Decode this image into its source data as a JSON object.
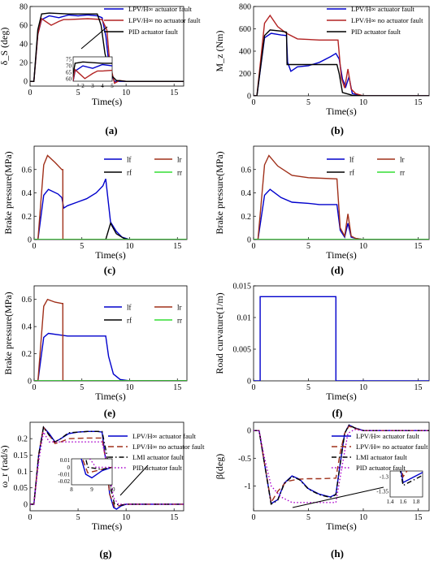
{
  "chart_data": [
    {
      "type": "line",
      "panel_label": "(a)",
      "ylabel": "δ_S (deg)",
      "xlabel": "Time(s)",
      "xlim": [
        0,
        16
      ],
      "ylim": [
        -5,
        80
      ],
      "xticks": [
        0,
        5,
        10,
        15
      ],
      "yticks": [
        0,
        20,
        40,
        60,
        80
      ],
      "grid": false,
      "legend": "top-right",
      "series": [
        {
          "name": "LPV/H∞ actuator fault",
          "color": "#0000cc",
          "x": [
            0,
            0.4,
            0.8,
            1.2,
            2,
            3,
            4,
            5,
            6,
            7,
            7.5,
            7.9,
            8.3,
            8.8,
            10,
            16
          ],
          "y": [
            0,
            0,
            50,
            66,
            70,
            68,
            71,
            70,
            71,
            70,
            68,
            48,
            10,
            0,
            0,
            0
          ]
        },
        {
          "name": "LPV/H∞ no actuator fault",
          "color": "#b22222",
          "x": [
            0,
            0.4,
            0.8,
            1.2,
            2.2,
            3,
            3.5,
            4,
            6,
            7.5,
            8.0,
            8.3,
            8.8,
            9.3,
            10,
            16
          ],
          "y": [
            0,
            0,
            50,
            67,
            60,
            64,
            66,
            66,
            67,
            66,
            55,
            20,
            -2,
            1,
            0,
            0
          ]
        },
        {
          "name": "PID actuator fault",
          "color": "#000000",
          "x": [
            0,
            0.4,
            0.8,
            1.2,
            2,
            4,
            6,
            7,
            7.4,
            7.8,
            8.3,
            9,
            10,
            16
          ],
          "y": [
            0,
            0,
            55,
            72,
            73,
            72,
            72,
            72,
            60,
            30,
            8,
            1,
            0,
            0
          ]
        }
      ],
      "inset": {
        "xlim": [
          1,
          5
        ],
        "ylim": [
          58,
          77
        ],
        "xticks": [
          2,
          3,
          4,
          5
        ],
        "yticks": [
          60,
          65,
          70,
          75
        ]
      }
    },
    {
      "type": "line",
      "panel_label": "(b)",
      "ylabel": "M_z (Nm)",
      "xlabel": "Time(s)",
      "xlim": [
        0,
        16
      ],
      "ylim": [
        0,
        800
      ],
      "xticks": [
        0,
        5,
        10,
        15
      ],
      "yticks": [
        0,
        200,
        400,
        600,
        800
      ],
      "grid": false,
      "legend": "top-right",
      "series": [
        {
          "name": "LPV/H∞ actuator fault",
          "color": "#0000cc",
          "x": [
            0,
            0.3,
            1.0,
            1.6,
            2.5,
            3,
            3.1,
            3.4,
            4,
            5,
            6,
            7,
            7.5,
            7.8,
            8.1,
            8.4,
            8.7,
            9.0,
            10,
            16
          ],
          "y": [
            0,
            0,
            520,
            560,
            545,
            540,
            300,
            220,
            260,
            270,
            300,
            350,
            380,
            330,
            150,
            80,
            170,
            20,
            0,
            0
          ]
        },
        {
          "name": "LPV/H∞ no actuator fault",
          "color": "#b22222",
          "x": [
            0,
            0.3,
            1.0,
            1.5,
            2.2,
            3,
            4,
            6,
            7.7,
            8.0,
            8.3,
            8.6,
            8.9,
            9.3,
            10,
            16
          ],
          "y": [
            0,
            0,
            650,
            720,
            620,
            560,
            510,
            500,
            500,
            160,
            70,
            240,
            60,
            20,
            0,
            0
          ]
        },
        {
          "name": "PID actuator fault",
          "color": "#000000",
          "x": [
            0,
            0.3,
            1.0,
            1.5,
            2.5,
            3,
            3.05,
            6,
            7.6,
            7.8,
            8.1,
            9,
            10,
            16
          ],
          "y": [
            0,
            0,
            540,
            590,
            580,
            570,
            280,
            280,
            280,
            200,
            30,
            5,
            0,
            0
          ]
        }
      ]
    },
    {
      "type": "line",
      "panel_label": "(c)",
      "ylabel": "Brake pressure(MPa)",
      "xlabel": "Time(s)",
      "xlim": [
        0,
        16
      ],
      "ylim": [
        0,
        0.8
      ],
      "xticks": [
        0,
        5,
        10,
        15
      ],
      "yticks": [
        0,
        0.2,
        0.4,
        0.6
      ],
      "grid": false,
      "legend": "top-right",
      "series": [
        {
          "name": "lf",
          "color": "#0000cc",
          "x": [
            0,
            0.4,
            1.0,
            1.5,
            2.5,
            2.9,
            3.1,
            3.5,
            4.5,
            5.5,
            6.5,
            7.2,
            7.5,
            8.0,
            8.6,
            9.2,
            10,
            16
          ],
          "y": [
            0,
            0,
            0.38,
            0.43,
            0.39,
            0.36,
            0.27,
            0.29,
            0.32,
            0.35,
            0.4,
            0.46,
            0.52,
            0.15,
            0.07,
            0.02,
            0,
            0
          ]
        },
        {
          "name": "lr",
          "color": "#a0301a",
          "x": [
            0,
            0.4,
            1.0,
            1.4,
            2.2,
            2.9,
            3.0,
            3.01,
            16
          ],
          "y": [
            0,
            0,
            0.64,
            0.72,
            0.66,
            0.6,
            0.6,
            0,
            0
          ]
        },
        {
          "name": "rf",
          "color": "#000000",
          "x": [
            0,
            7.5,
            8.0,
            8.6,
            9.4,
            10,
            16
          ],
          "y": [
            0,
            0,
            0.14,
            0.05,
            0.01,
            0,
            0
          ]
        },
        {
          "name": "rr",
          "color": "#33dd33",
          "x": [
            0,
            16
          ],
          "y": [
            0,
            0
          ]
        }
      ]
    },
    {
      "type": "line",
      "panel_label": "(d)",
      "ylabel": "Brake pressure(MPa)",
      "xlabel": "Time(s)",
      "xlim": [
        0,
        16
      ],
      "ylim": [
        0,
        0.8
      ],
      "xticks": [
        0,
        5,
        10,
        15
      ],
      "yticks": [
        0,
        0.2,
        0.4,
        0.6
      ],
      "grid": false,
      "legend": "top-right",
      "series": [
        {
          "name": "lf",
          "color": "#0000cc",
          "x": [
            0,
            0.4,
            1.0,
            1.5,
            2.5,
            3.5,
            5,
            6,
            7.6,
            7.9,
            8.3,
            8.6,
            8.9,
            9.3,
            10,
            16
          ],
          "y": [
            0,
            0,
            0.38,
            0.43,
            0.36,
            0.32,
            0.31,
            0.3,
            0.3,
            0.08,
            0.02,
            0.14,
            0.02,
            0.01,
            0,
            0
          ]
        },
        {
          "name": "lr",
          "color": "#a0301a",
          "x": [
            0,
            0.4,
            1.0,
            1.4,
            2.2,
            3.5,
            5,
            7.6,
            7.9,
            8.3,
            8.6,
            8.9,
            9.3,
            10,
            16
          ],
          "y": [
            0,
            0,
            0.64,
            0.72,
            0.63,
            0.55,
            0.53,
            0.52,
            0.1,
            0.03,
            0.22,
            0.03,
            0.01,
            0,
            0
          ]
        },
        {
          "name": "rf",
          "color": "#000000",
          "x": [
            0,
            16
          ],
          "y": [
            0,
            0
          ]
        },
        {
          "name": "rr",
          "color": "#33dd33",
          "x": [
            0,
            16
          ],
          "y": [
            0,
            0
          ]
        }
      ]
    },
    {
      "type": "line",
      "panel_label": "(e)",
      "ylabel": "Brake pressure(MPa)",
      "xlabel": "Time(s)",
      "xlim": [
        0,
        16
      ],
      "ylim": [
        0,
        0.7
      ],
      "xticks": [
        0,
        5,
        10,
        15
      ],
      "yticks": [
        0,
        0.2,
        0.4,
        0.6
      ],
      "grid": false,
      "legend": "top-right",
      "series": [
        {
          "name": "lf",
          "color": "#0000cc",
          "x": [
            0,
            0.4,
            1.0,
            1.5,
            2.5,
            3.5,
            5,
            7.5,
            7.8,
            8.3,
            9,
            10,
            16
          ],
          "y": [
            0,
            0,
            0.32,
            0.35,
            0.34,
            0.33,
            0.33,
            0.33,
            0.18,
            0.05,
            0.01,
            0,
            0
          ]
        },
        {
          "name": "lr",
          "color": "#a0301a",
          "x": [
            0,
            0.4,
            1.0,
            1.4,
            2.2,
            2.9,
            3.0,
            3.01,
            16
          ],
          "y": [
            0,
            0,
            0.55,
            0.6,
            0.58,
            0.57,
            0.57,
            0,
            0
          ]
        },
        {
          "name": "rf",
          "color": "#000000",
          "x": [
            0,
            16
          ],
          "y": [
            0,
            0
          ]
        },
        {
          "name": "rr",
          "color": "#33dd33",
          "x": [
            0,
            16
          ],
          "y": [
            0,
            0
          ]
        }
      ]
    },
    {
      "type": "line",
      "panel_label": "(f)",
      "ylabel": "Road curvature(1/m)",
      "xlabel": "Time(s)",
      "xlim": [
        0,
        16
      ],
      "ylim": [
        0,
        0.015
      ],
      "xticks": [
        0,
        5,
        10,
        15
      ],
      "yticks": [
        0,
        0.005,
        0.01,
        0.015
      ],
      "ytick_labels": [
        "0",
        "0.005",
        "0.01",
        "0.015"
      ],
      "grid": false,
      "series": [
        {
          "name": "",
          "color": "#0000cc",
          "x": [
            0,
            0.6,
            0.6,
            7.5,
            7.5,
            16
          ],
          "y": [
            0,
            0,
            0.0133,
            0.0133,
            0,
            0
          ]
        }
      ]
    },
    {
      "type": "line",
      "panel_label": "(g)",
      "ylabel": "ω_r (rad/s)",
      "xlabel": "Time(s)",
      "xlim": [
        0,
        16
      ],
      "ylim": [
        -0.02,
        0.25
      ],
      "xticks": [
        0,
        5,
        10,
        15
      ],
      "yticks": [
        0,
        0.05,
        0.1,
        0.15,
        0.2
      ],
      "ytick_labels": [
        "0",
        "0.05",
        "0.1",
        "0.15",
        "0.2"
      ],
      "grid": false,
      "legend": "top-right",
      "series": [
        {
          "name": "LPV/H∞ actuator fault",
          "color": "#0000cc",
          "style": "solid",
          "x": [
            0,
            0.4,
            0.9,
            1.4,
            2.0,
            2.6,
            3.2,
            4,
            5,
            6,
            7,
            7.5,
            7.9,
            8.3,
            8.7,
            9.0,
            9.5,
            10,
            16
          ],
          "y": [
            0,
            0,
            0.15,
            0.235,
            0.215,
            0.19,
            0.2,
            0.215,
            0.22,
            0.222,
            0.222,
            0.22,
            0.13,
            0.03,
            -0.01,
            -0.015,
            -0.005,
            0,
            0
          ]
        },
        {
          "name": "LPV/H∞ no actuator fault",
          "color": "#a0301a",
          "style": "dash",
          "x": [
            0,
            0.4,
            0.9,
            1.4,
            2.0,
            2.6,
            3.2,
            4,
            6,
            7.5,
            7.9,
            8.3,
            8.8,
            9.5,
            10,
            16
          ],
          "y": [
            0,
            0,
            0.15,
            0.235,
            0.21,
            0.185,
            0.19,
            0.2,
            0.202,
            0.202,
            0.13,
            0.03,
            -0.008,
            -0.003,
            0,
            0
          ]
        },
        {
          "name": "LMI actuator fault",
          "color": "#000000",
          "style": "dashdot",
          "x": [
            0,
            0.4,
            0.9,
            1.4,
            2.0,
            2.6,
            3.2,
            4,
            6,
            7.5,
            8.0,
            8.4,
            8.8,
            9.5,
            10,
            16
          ],
          "y": [
            0,
            0,
            0.15,
            0.235,
            0.21,
            0.19,
            0.2,
            0.218,
            0.222,
            0.222,
            0.15,
            0.05,
            0.0,
            -0.003,
            0,
            0
          ]
        },
        {
          "name": "PID actuator fault",
          "color": "#aa00cc",
          "style": "dot",
          "x": [
            0,
            0.4,
            0.9,
            1.4,
            2.0,
            3,
            4,
            6,
            7.5,
            8.2,
            8.7,
            9.2,
            10,
            16
          ],
          "y": [
            0,
            0,
            0.13,
            0.22,
            0.19,
            0.19,
            0.19,
            0.19,
            0.19,
            0.1,
            0.02,
            0.0,
            0,
            0
          ]
        }
      ],
      "inset": {
        "xlim": [
          8,
          10
        ],
        "ylim": [
          -0.025,
          0.012
        ],
        "xticks": [
          8,
          9,
          10
        ],
        "yticks": [
          0.01,
          0,
          -0.01,
          -0.02
        ]
      }
    },
    {
      "type": "line",
      "panel_label": "(h)",
      "ylabel": "β(deg)",
      "xlabel": "Time(s)",
      "xlim": [
        0,
        16
      ],
      "ylim": [
        -1.45,
        0.15
      ],
      "xticks": [
        0,
        5,
        10,
        15
      ],
      "yticks": [
        -1,
        -0.5,
        0
      ],
      "ytick_labels": [
        "-1",
        "-0.5",
        "0"
      ],
      "grid": false,
      "legend": "top-right",
      "series": [
        {
          "name": "LPV/H∞ actuator fault",
          "color": "#0000cc",
          "style": "solid",
          "x": [
            0,
            0.5,
            1.0,
            1.6,
            2.2,
            2.8,
            3.5,
            4.2,
            5,
            6,
            7,
            7.5,
            7.9,
            8.3,
            8.7,
            9.2,
            10,
            16
          ],
          "y": [
            0,
            0,
            -0.6,
            -1.32,
            -1.25,
            -0.95,
            -0.82,
            -0.88,
            -1.05,
            -1.15,
            -1.2,
            -1.15,
            -0.6,
            -0.05,
            0.1,
            0.05,
            0,
            0
          ]
        },
        {
          "name": "LPV/H∞ no actuator fault",
          "color": "#a0301a",
          "style": "dash",
          "x": [
            0,
            0.5,
            1.0,
            1.6,
            2.2,
            3,
            4,
            5,
            6,
            7.5,
            7.9,
            8.3,
            8.7,
            9.2,
            10,
            16
          ],
          "y": [
            0,
            0,
            -0.6,
            -1.3,
            -1.1,
            -0.92,
            -0.88,
            -0.87,
            -0.87,
            -0.86,
            -0.4,
            -0.05,
            0.08,
            0.04,
            0,
            0
          ]
        },
        {
          "name": "LMI actuator fault",
          "color": "#000000",
          "style": "dashdot",
          "x": [
            0,
            0.5,
            1.0,
            1.6,
            2.2,
            2.8,
            3.5,
            4.2,
            5,
            6,
            7,
            7.5,
            7.9,
            8.3,
            8.7,
            9.2,
            10,
            16
          ],
          "y": [
            0,
            0,
            -0.6,
            -1.33,
            -1.26,
            -0.96,
            -0.83,
            -0.89,
            -1.06,
            -1.16,
            -1.21,
            -1.16,
            -0.6,
            -0.05,
            0.1,
            0.05,
            0,
            0
          ]
        },
        {
          "name": "PID actuator fault",
          "color": "#aa00cc",
          "style": "dot",
          "x": [
            0,
            0.5,
            1.0,
            1.6,
            2.5,
            3.5,
            5,
            6,
            7.5,
            8.1,
            8.6,
            9.2,
            10,
            16
          ],
          "y": [
            0,
            0,
            -0.5,
            -1.0,
            -1.2,
            -1.3,
            -1.3,
            -1.3,
            -1.3,
            -0.6,
            -0.05,
            0.02,
            0,
            0
          ]
        }
      ],
      "inset": {
        "xlim": [
          1.4,
          1.9
        ],
        "ylim": [
          -1.37,
          -1.28
        ],
        "xticks": [
          1.4,
          1.6,
          1.8
        ],
        "yticks": [
          -1.3,
          -1.35
        ]
      }
    }
  ]
}
